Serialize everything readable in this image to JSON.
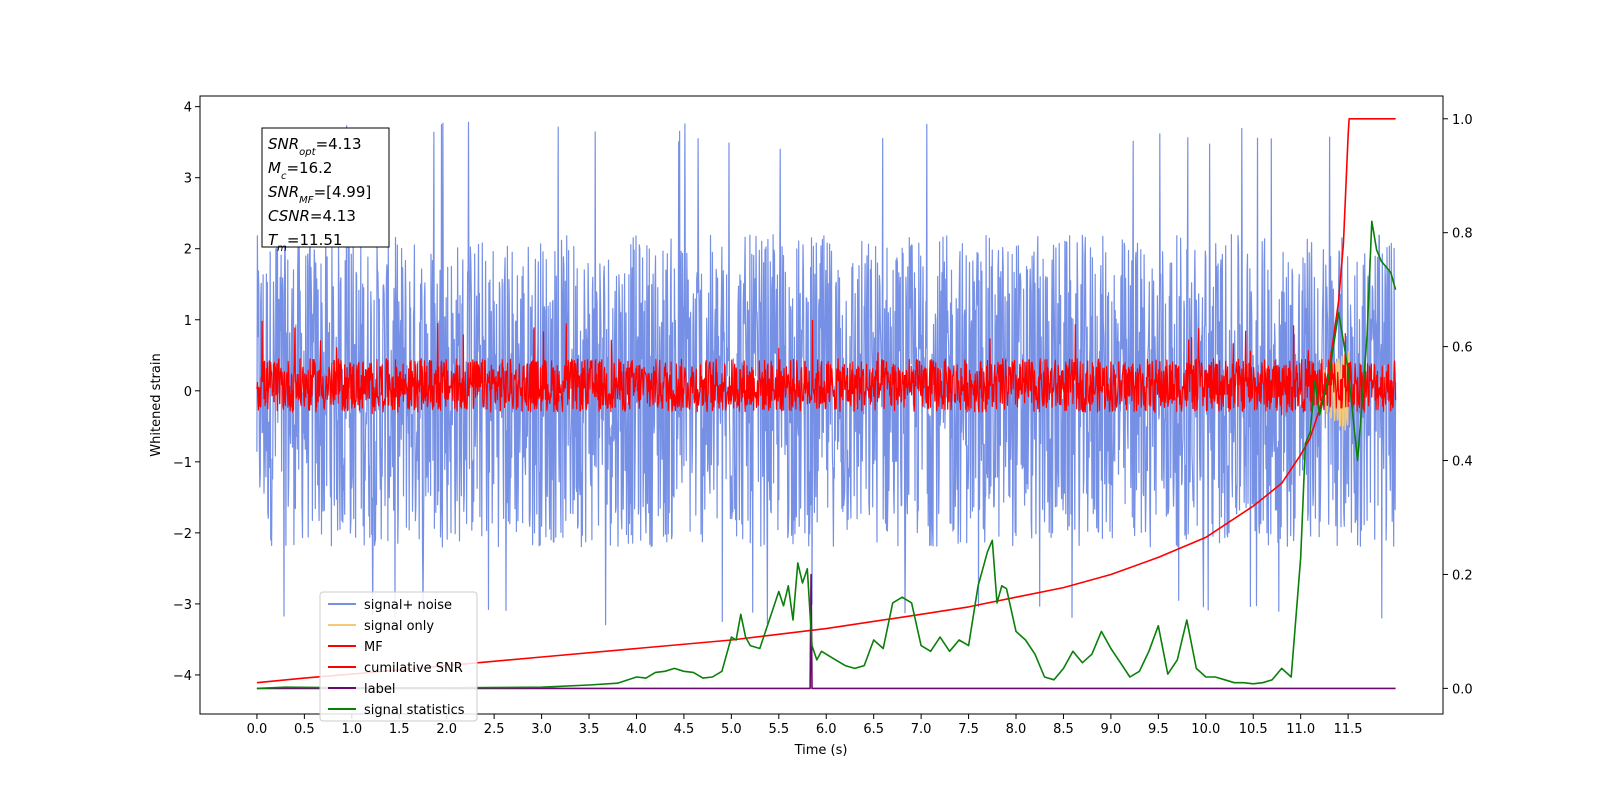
{
  "chart_data": {
    "type": "line",
    "xlabel": "Time (s)",
    "ylabel": "Whitened strain",
    "xlim": [
      -0.6,
      12.5
    ],
    "ylim": [
      -4.55,
      4.15
    ],
    "y2lim": [
      -0.045,
      1.04
    ],
    "xticks": [
      0.0,
      0.5,
      1.0,
      1.5,
      2.0,
      2.5,
      3.0,
      3.5,
      4.0,
      4.5,
      5.0,
      5.5,
      6.0,
      6.5,
      7.0,
      7.5,
      8.0,
      8.5,
      9.0,
      9.5,
      10.0,
      10.5,
      11.0,
      11.5
    ],
    "xtick_labels": [
      "0.0",
      "0.5",
      "1.0",
      "1.5",
      "2.0",
      "2.5",
      "3.0",
      "3.5",
      "4.0",
      "4.5",
      "5.0",
      "5.5",
      "6.0",
      "6.5",
      "7.0",
      "7.5",
      "8.0",
      "8.5",
      "9.0",
      "9.5",
      "10.0",
      "10.5",
      "11.0",
      "11.5"
    ],
    "yticks": [
      -4,
      -3,
      -2,
      -1,
      0,
      1,
      2,
      3,
      4
    ],
    "ytick_labels": [
      "−4",
      "−3",
      "−2",
      "−1",
      "0",
      "1",
      "2",
      "3",
      "4"
    ],
    "y2ticks": [
      0.0,
      0.2,
      0.4,
      0.6,
      0.8,
      1.0
    ],
    "y2tick_labels": [
      "0.0",
      "0.2",
      "0.4",
      "0.6",
      "0.8",
      "1.0"
    ],
    "legend_position": "lower-left",
    "legend": [
      {
        "label": "signal+ noise",
        "color": "#7690e6"
      },
      {
        "label": "signal only",
        "color": "#f5c97a"
      },
      {
        "label": "MF",
        "color": "#ff0000"
      },
      {
        "label": "cumilative SNR",
        "color": "#ff0000"
      },
      {
        "label": "label",
        "color": "#6a0a6a"
      },
      {
        "label": "signal statistics",
        "color": "#0a800a"
      }
    ],
    "annotation": {
      "lines": [
        {
          "base": "SNR",
          "sub": "opt",
          "value": "=4.13"
        },
        {
          "base": "M",
          "sub": "c",
          "value": "=16.2"
        },
        {
          "base": "SNR",
          "sub": "MF",
          "value": "=[4.99]"
        },
        {
          "base": "CSNR",
          "sub": "",
          "value": "=4.13"
        },
        {
          "base": "T",
          "sub": "m",
          "value": "=11.51"
        }
      ]
    },
    "series": [
      {
        "name": "signal+ noise",
        "axis": "left",
        "style": "noise",
        "x_range": [
          0.0,
          12.0
        ],
        "band": [
          -2.2,
          2.2
        ],
        "extremes": [
          -3.3,
          3.8
        ],
        "color": "#7690e6"
      },
      {
        "name": "signal only",
        "axis": "left",
        "style": "chirp",
        "x_range": [
          11.1,
          11.51
        ],
        "y_range": [
          -0.7,
          0.5
        ],
        "color": "#f5c97a"
      },
      {
        "name": "MF",
        "axis": "left",
        "style": "noise",
        "x_range": [
          0.0,
          12.0
        ],
        "band": [
          -0.3,
          0.45
        ],
        "extremes": [
          -0.35,
          1.0
        ],
        "color": "#ff0000"
      },
      {
        "name": "cumilative SNR",
        "axis": "right",
        "color": "#ff0000",
        "x": [
          0.0,
          0.5,
          1.0,
          2.0,
          3.0,
          4.0,
          5.0,
          6.0,
          7.0,
          7.5,
          8.0,
          8.5,
          9.0,
          9.5,
          10.0,
          10.5,
          10.8,
          11.0,
          11.1,
          11.2,
          11.3,
          11.4,
          11.45,
          11.5,
          11.51,
          12.0
        ],
        "y": [
          0.01,
          0.018,
          0.025,
          0.04,
          0.055,
          0.07,
          0.085,
          0.105,
          0.13,
          0.143,
          0.16,
          0.177,
          0.2,
          0.23,
          0.265,
          0.32,
          0.36,
          0.41,
          0.44,
          0.49,
          0.56,
          0.68,
          0.78,
          0.97,
          1.0,
          1.0
        ]
      },
      {
        "name": "label",
        "axis": "right",
        "color": "#6a0a6a",
        "x": [
          0.0,
          5.83,
          5.84,
          5.85,
          5.86,
          12.0
        ],
        "y": [
          0.0,
          0.0,
          0.2,
          0.0,
          0.0,
          0.0
        ]
      },
      {
        "name": "signal statistics",
        "axis": "right",
        "color": "#0a800a",
        "x": [
          0.0,
          0.3,
          1.0,
          2.0,
          3.0,
          3.5,
          3.8,
          4.0,
          4.1,
          4.2,
          4.3,
          4.4,
          4.5,
          4.6,
          4.7,
          4.8,
          4.9,
          5.0,
          5.05,
          5.1,
          5.15,
          5.2,
          5.3,
          5.4,
          5.5,
          5.55,
          5.6,
          5.65,
          5.7,
          5.75,
          5.8,
          5.85,
          5.9,
          5.95,
          6.0,
          6.1,
          6.2,
          6.3,
          6.4,
          6.5,
          6.6,
          6.7,
          6.8,
          6.9,
          7.0,
          7.1,
          7.2,
          7.3,
          7.4,
          7.5,
          7.6,
          7.7,
          7.75,
          7.8,
          7.85,
          7.9,
          8.0,
          8.1,
          8.2,
          8.3,
          8.4,
          8.5,
          8.6,
          8.7,
          8.8,
          8.9,
          9.0,
          9.1,
          9.2,
          9.3,
          9.4,
          9.5,
          9.6,
          9.7,
          9.8,
          9.9,
          10.0,
          10.1,
          10.2,
          10.3,
          10.4,
          10.5,
          10.6,
          10.7,
          10.8,
          10.9,
          11.0,
          11.05,
          11.1,
          11.15,
          11.2,
          11.3,
          11.4,
          11.5,
          11.6,
          11.7,
          11.75,
          11.8,
          11.85,
          11.9,
          11.95,
          12.0
        ],
        "y": [
          0.0,
          0.002,
          0.001,
          0.001,
          0.002,
          0.006,
          0.009,
          0.02,
          0.018,
          0.028,
          0.03,
          0.035,
          0.03,
          0.028,
          0.018,
          0.02,
          0.03,
          0.09,
          0.085,
          0.13,
          0.09,
          0.075,
          0.07,
          0.12,
          0.17,
          0.145,
          0.18,
          0.12,
          0.22,
          0.185,
          0.21,
          0.075,
          0.05,
          0.065,
          0.06,
          0.05,
          0.04,
          0.035,
          0.04,
          0.085,
          0.07,
          0.15,
          0.16,
          0.15,
          0.075,
          0.065,
          0.09,
          0.065,
          0.085,
          0.075,
          0.18,
          0.24,
          0.26,
          0.15,
          0.18,
          0.175,
          0.1,
          0.085,
          0.06,
          0.02,
          0.015,
          0.035,
          0.065,
          0.045,
          0.06,
          0.1,
          0.07,
          0.045,
          0.02,
          0.03,
          0.065,
          0.11,
          0.025,
          0.05,
          0.12,
          0.035,
          0.02,
          0.02,
          0.015,
          0.01,
          0.01,
          0.008,
          0.01,
          0.015,
          0.035,
          0.02,
          0.23,
          0.43,
          0.45,
          0.54,
          0.48,
          0.55,
          0.66,
          0.56,
          0.4,
          0.62,
          0.82,
          0.77,
          0.75,
          0.74,
          0.73,
          0.7
        ]
      }
    ]
  }
}
